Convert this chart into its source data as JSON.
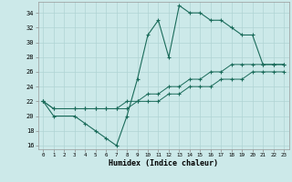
{
  "xlabel": "Humidex (Indice chaleur)",
  "background_color": "#cce9e9",
  "grid_color": "#b0d4d4",
  "line_color": "#1a6b5a",
  "series1_x": [
    0,
    1,
    3,
    4,
    5,
    6,
    7,
    8,
    9,
    10,
    11,
    12,
    13,
    14,
    15,
    16,
    17,
    18,
    19,
    20,
    21,
    22,
    23
  ],
  "series1_y": [
    22,
    20,
    20,
    19,
    18,
    17,
    16,
    20,
    25,
    31,
    33,
    28,
    35,
    34,
    34,
    33,
    33,
    32,
    31,
    31,
    27,
    27,
    27
  ],
  "series2_x": [
    0,
    1,
    3,
    4,
    5,
    6,
    7,
    8,
    9,
    10,
    11,
    12,
    13,
    14,
    15,
    16,
    17,
    18,
    19,
    20,
    21,
    22,
    23
  ],
  "series2_y": [
    22,
    21,
    21,
    21,
    21,
    21,
    21,
    22,
    22,
    23,
    23,
    24,
    24,
    25,
    25,
    26,
    26,
    27,
    27,
    27,
    27,
    27,
    27
  ],
  "series3_x": [
    0,
    1,
    3,
    4,
    5,
    6,
    7,
    8,
    9,
    10,
    11,
    12,
    13,
    14,
    15,
    16,
    17,
    18,
    19,
    20,
    21,
    22,
    23
  ],
  "series3_y": [
    22,
    21,
    21,
    21,
    21,
    21,
    21,
    21,
    22,
    22,
    22,
    23,
    23,
    24,
    24,
    24,
    25,
    25,
    25,
    26,
    26,
    26,
    26
  ],
  "xlim_min": -0.5,
  "xlim_max": 23.5,
  "ylim_min": 15.5,
  "ylim_max": 35.5,
  "yticks": [
    16,
    18,
    20,
    22,
    24,
    26,
    28,
    30,
    32,
    34
  ],
  "xticks": [
    0,
    1,
    2,
    3,
    4,
    5,
    6,
    7,
    8,
    9,
    10,
    11,
    12,
    13,
    14,
    15,
    16,
    17,
    18,
    19,
    20,
    21,
    22,
    23
  ]
}
